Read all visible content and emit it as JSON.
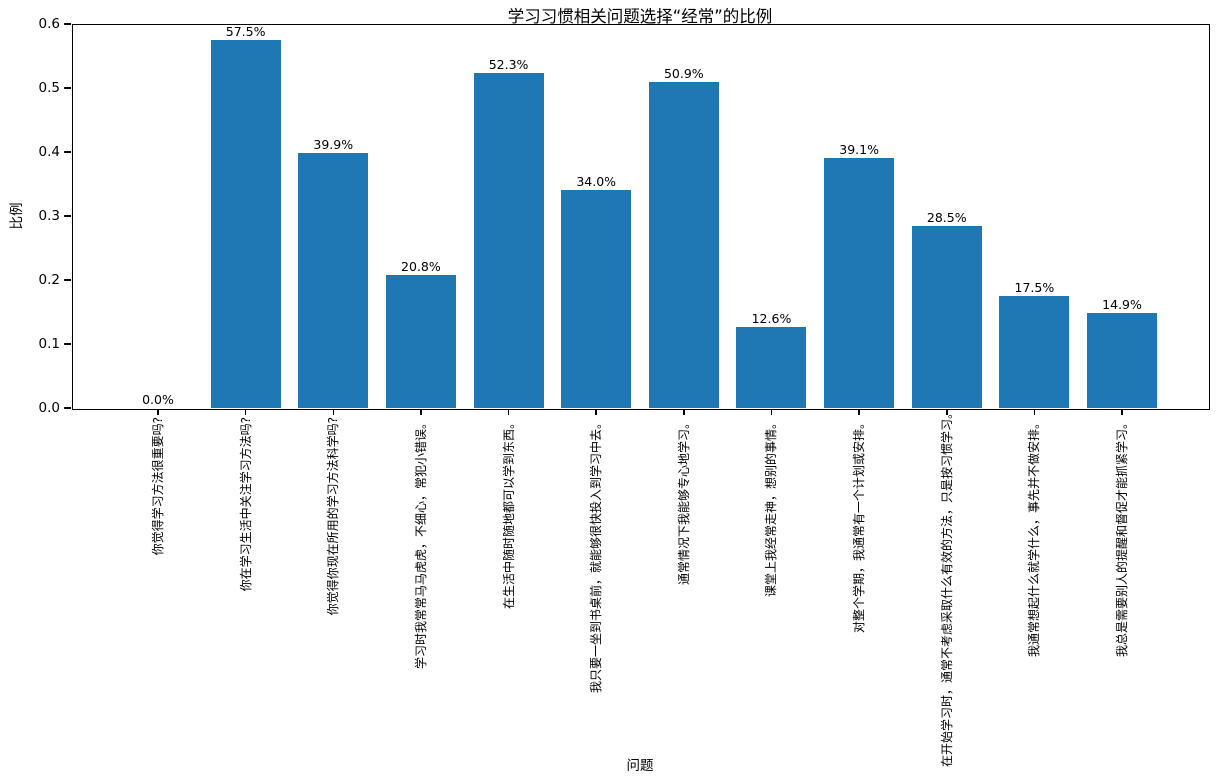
{
  "figure": {
    "background": "#ffffff"
  },
  "chart_data": {
    "type": "bar",
    "title": "学习习惯相关问题选择“经常”的比例",
    "xlabel": "问题",
    "ylabel": "比例",
    "ylim": [
      0,
      0.6
    ],
    "yticks": [
      "0.0",
      "0.1",
      "0.2",
      "0.3",
      "0.4",
      "0.5",
      "0.6"
    ],
    "categories": [
      "你觉得学习方法很重要吗?",
      "你在学习生活中关注学习方法吗?",
      "你觉得你现在所用的学习方法科学吗?",
      "学习时我常常马马虎虎，不细心，常犯小错误。",
      "在生活中随时随地都可以学到东西。",
      "我只要一坐到书桌前，就能够很快投入到学习中去。",
      "通常情况下我能够专心地学习。",
      "课堂上我经常走神，想别的事情。",
      "对整个学期，我通常有一个计划或安排。",
      "在开始学习时，通常不考虑采取什么有效的方法，只是按习惯学习。",
      "我通常想起什么就学什么，事先并不做安排。",
      "我总是需要别人的提醒和督促才能抓紧学习。"
    ],
    "values": [
      0.0,
      0.575,
      0.399,
      0.208,
      0.523,
      0.34,
      0.509,
      0.126,
      0.391,
      0.285,
      0.175,
      0.149
    ],
    "value_labels": [
      "0.0%",
      "57.5%",
      "39.9%",
      "20.8%",
      "52.3%",
      "34.0%",
      "50.9%",
      "12.6%",
      "39.1%",
      "28.5%",
      "17.5%",
      "14.9%"
    ],
    "bar_color": "#1f77b4",
    "axis_color": "#000000",
    "grid": false,
    "legend": "none"
  }
}
